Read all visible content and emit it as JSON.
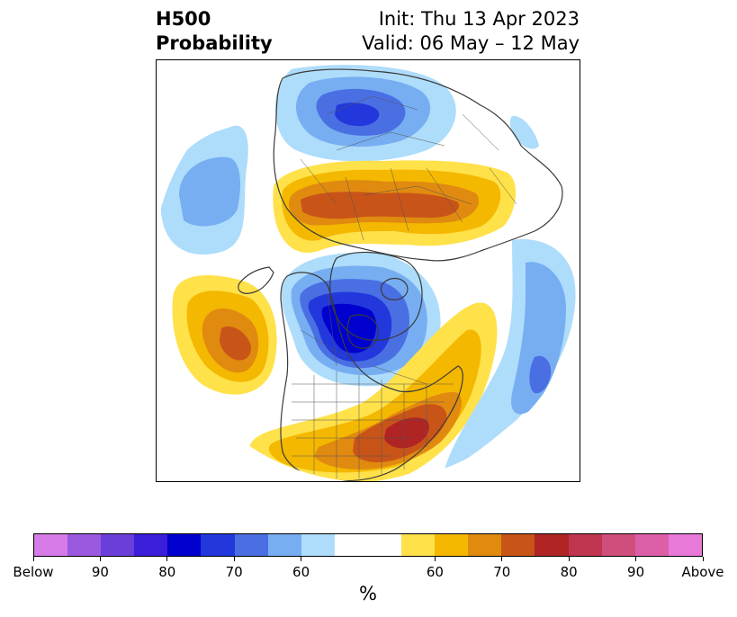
{
  "header": {
    "variable": "H500",
    "product": "Probability",
    "init": "Init: Thu 13 Apr 2023",
    "valid": "Valid: 06 May – 12 May"
  },
  "map": {
    "projection": "north-polar-stereographic",
    "features": [
      "coastlines",
      "country borders",
      "US state borders"
    ],
    "below_normal_centers": [
      "Arctic north of Siberia",
      "Northern Canada / Hudson Bay",
      "North Pacific west of Alaska",
      "Western North Atlantic"
    ],
    "above_normal_centers": [
      "Northern Russia / Scandinavia",
      "Gulf of Alaska",
      "Eastern United States"
    ]
  },
  "colorbar": {
    "label": "%",
    "colors": [
      "#d67be8",
      "#9b59e0",
      "#6a3ed9",
      "#3a1ed9",
      "#0000cf",
      "#2238dc",
      "#4a6fe3",
      "#77aef2",
      "#aedcfb",
      "#ffffff",
      "#ffe14a",
      "#f4b800",
      "#e08a10",
      "#c85418",
      "#b02424",
      "#c0354f",
      "#d04e7c",
      "#dc5fa8",
      "#e879d9"
    ],
    "ticks": [
      "Below",
      "90",
      "80",
      "70",
      "60",
      "60",
      "70",
      "80",
      "90",
      "Above"
    ]
  }
}
